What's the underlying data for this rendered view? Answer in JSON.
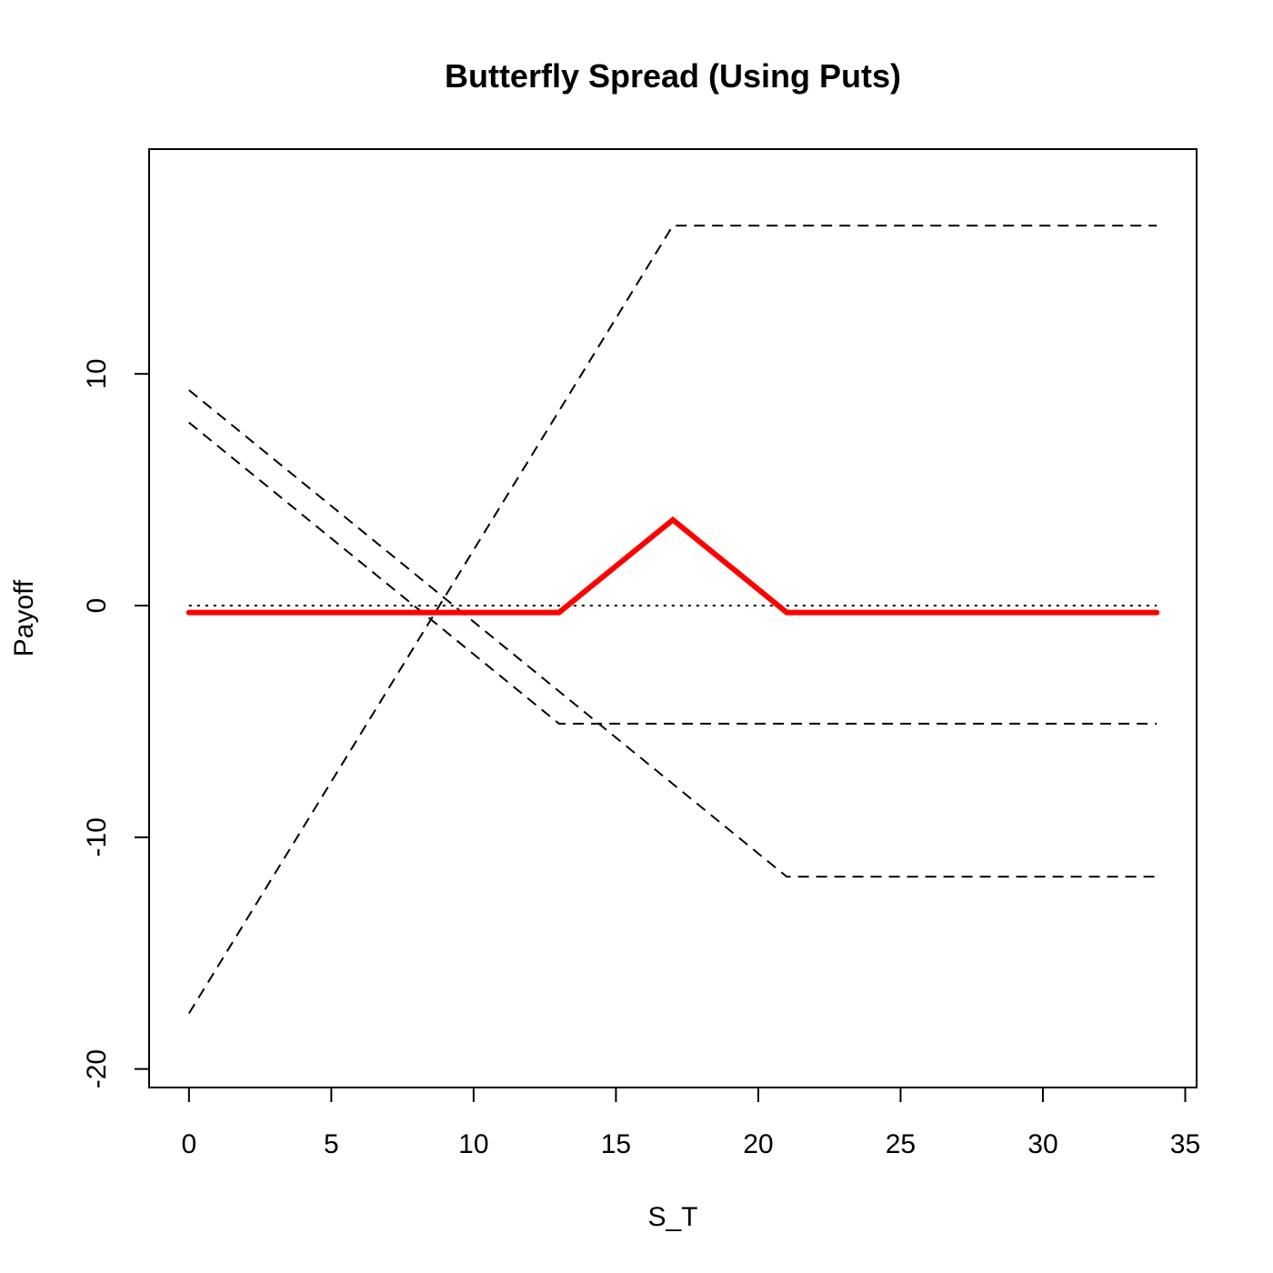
{
  "chart_data": {
    "type": "line",
    "title": "Butterfly Spread (Using Puts)",
    "xlabel": "S_T",
    "ylabel": "Payoff",
    "xlim": [
      -1.4,
      35.4
    ],
    "ylim": [
      -20.8,
      19.7
    ],
    "xticks": [
      0,
      5,
      10,
      15,
      20,
      25,
      30,
      35
    ],
    "yticks": [
      -20,
      -10,
      0,
      10
    ],
    "grid": false,
    "series": [
      {
        "style": "dashed",
        "color": "#000000",
        "x": [
          0,
          17,
          34
        ],
        "y": [
          -17.6,
          16.4,
          16.4
        ]
      },
      {
        "style": "dashed",
        "color": "#000000",
        "x": [
          0,
          13,
          34
        ],
        "y": [
          7.9,
          -5.1,
          -5.1
        ]
      },
      {
        "style": "dashed",
        "color": "#000000",
        "x": [
          0,
          21,
          34
        ],
        "y": [
          9.3,
          -11.7,
          -11.7
        ]
      },
      {
        "style": "dotted",
        "color": "#000000",
        "x": [
          0,
          34
        ],
        "y": [
          0,
          0
        ]
      },
      {
        "style": "solid",
        "color": "#ff0000",
        "x": [
          0,
          13,
          17,
          21,
          34
        ],
        "y": [
          -0.3,
          -0.3,
          3.7,
          -0.3,
          -0.3
        ]
      }
    ]
  }
}
